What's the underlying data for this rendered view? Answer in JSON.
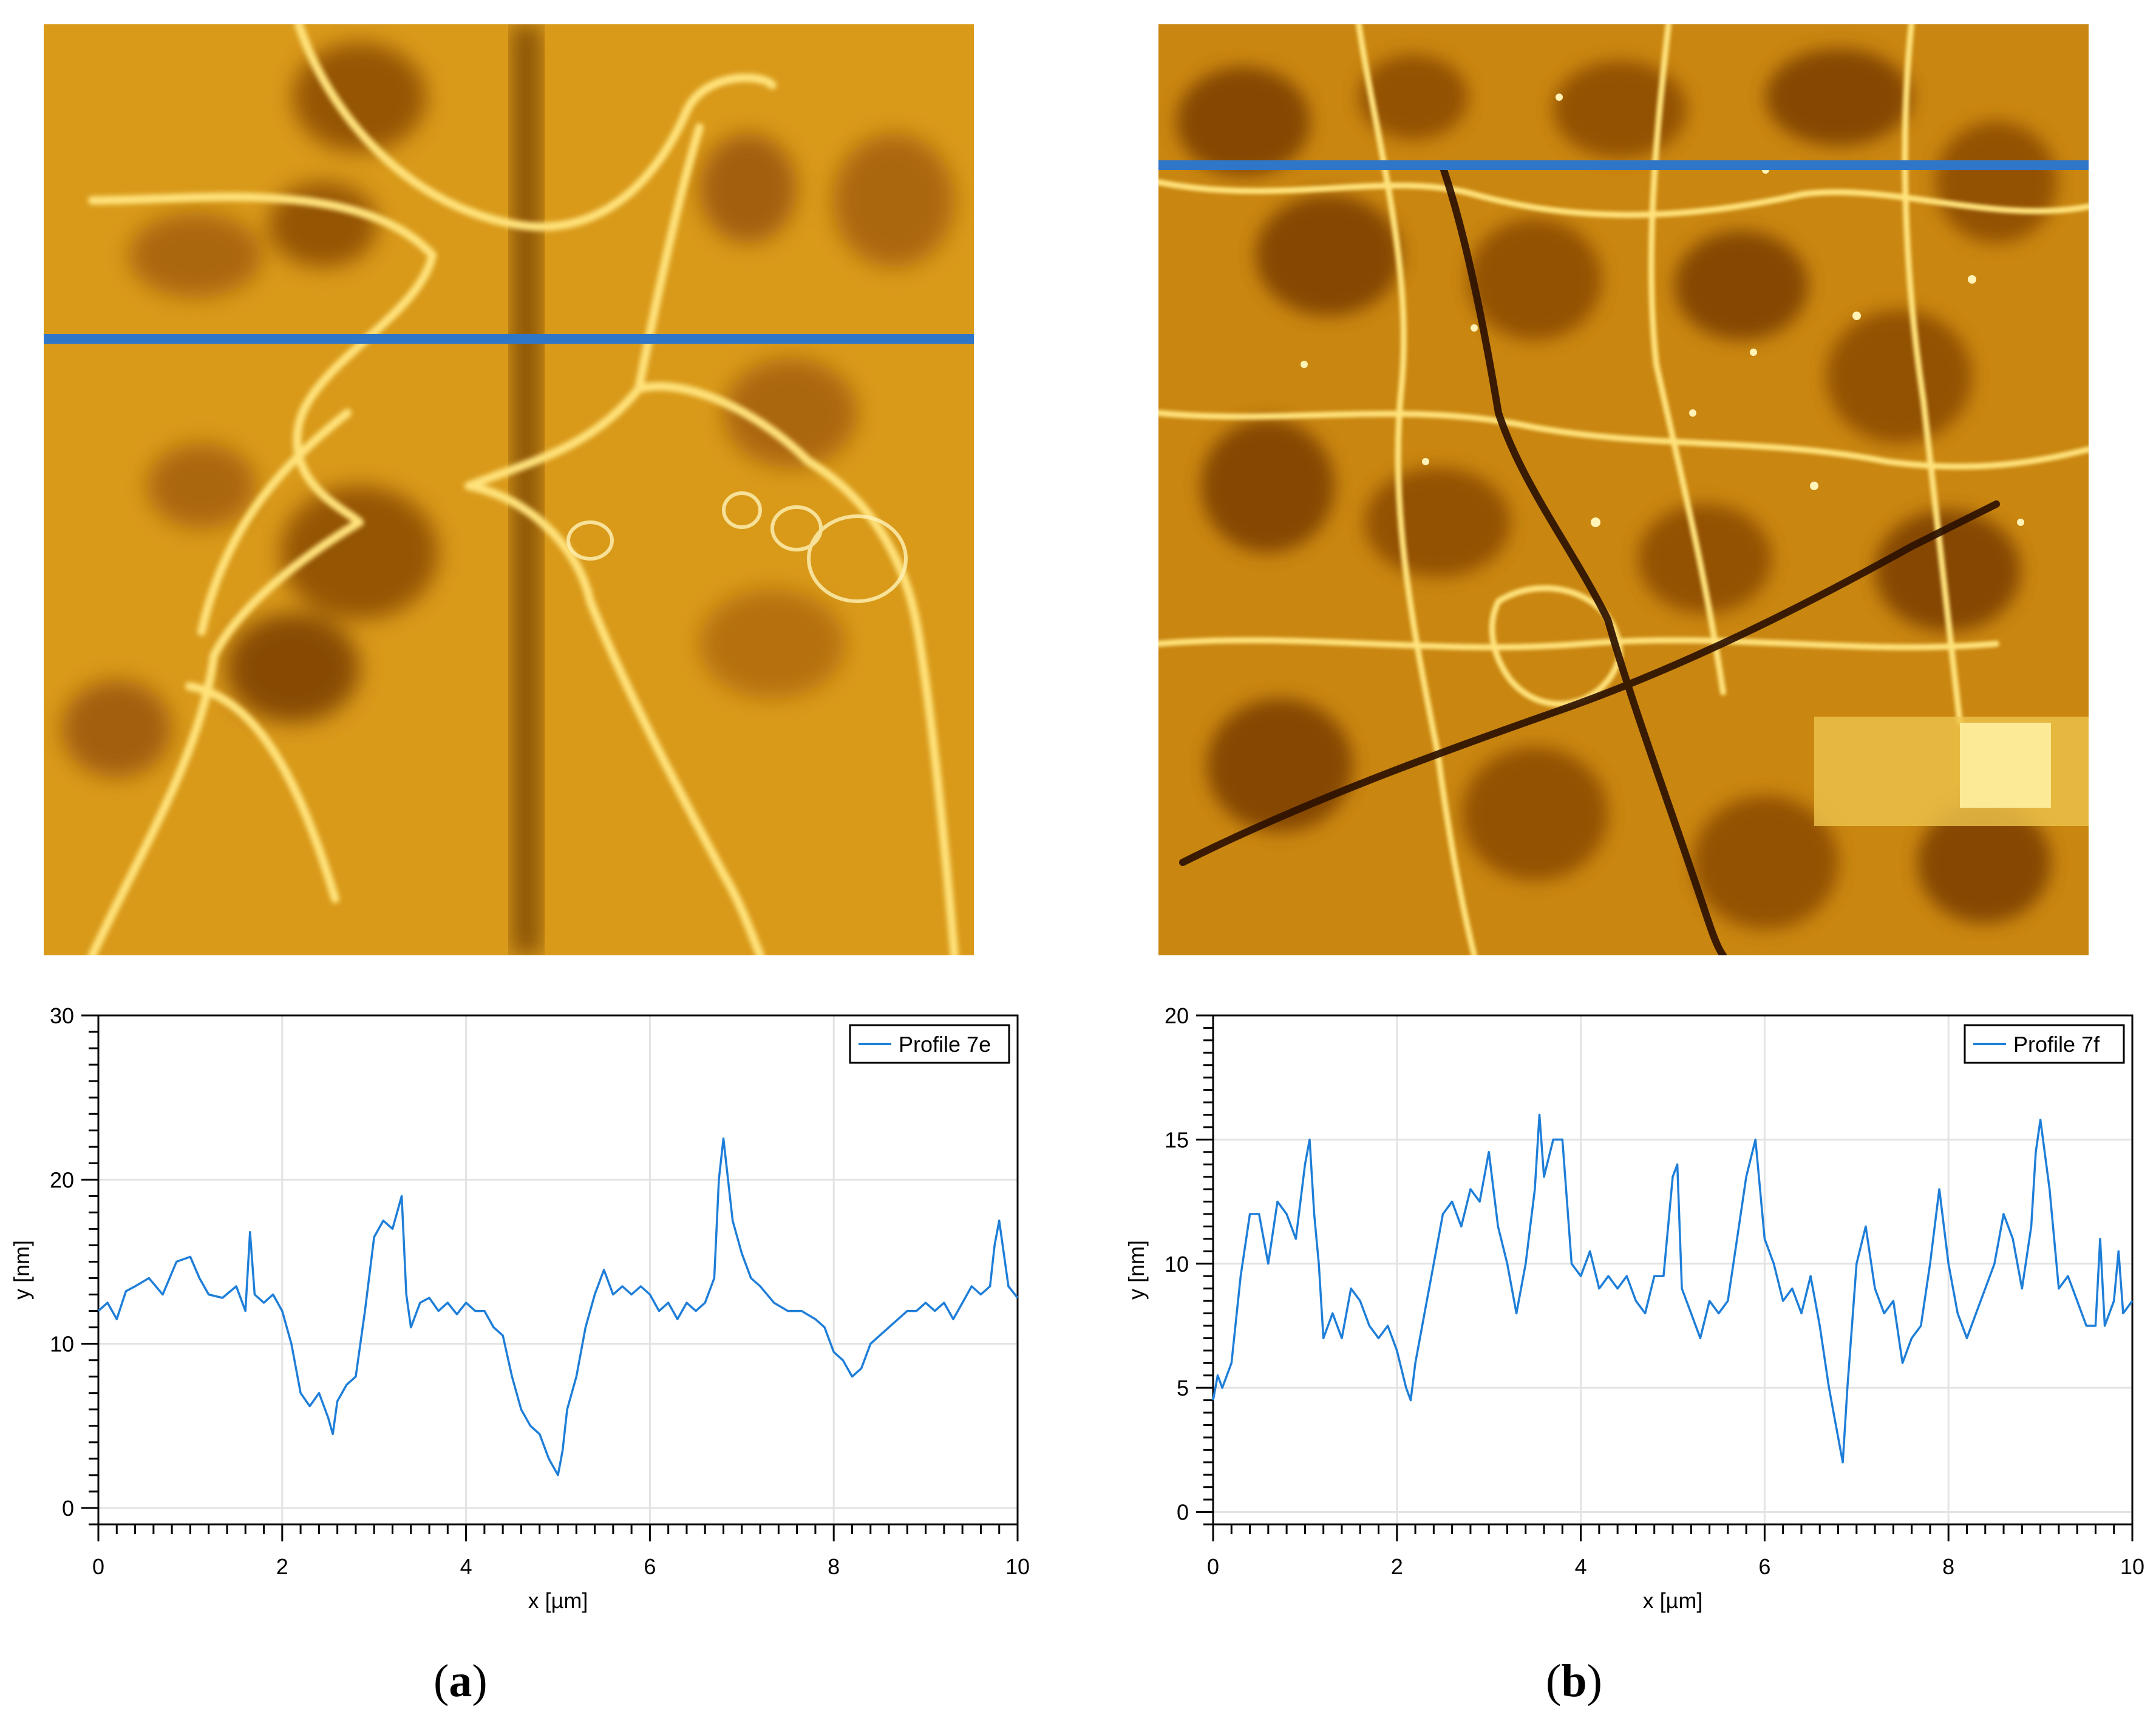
{
  "chart_data": [
    {
      "type": "line",
      "panel": "a",
      "title": "",
      "xlabel": "x [µm]",
      "ylabel": "y [nm]",
      "xlim": [
        0,
        10
      ],
      "ylim": [
        -1,
        30
      ],
      "xticks": [
        "0",
        "2",
        "4",
        "6",
        "8",
        "10"
      ],
      "yticks": [
        "0",
        "10",
        "20",
        "30"
      ],
      "grid": true,
      "legend": "top-right",
      "series": [
        {
          "name": "Profile 7e",
          "color": "#1e7ed8",
          "x": [
            0.0,
            0.1,
            0.2,
            0.3,
            0.4,
            0.55,
            0.7,
            0.85,
            1.0,
            1.1,
            1.2,
            1.35,
            1.5,
            1.6,
            1.65,
            1.7,
            1.8,
            1.9,
            2.0,
            2.1,
            2.2,
            2.3,
            2.4,
            2.5,
            2.55,
            2.6,
            2.7,
            2.8,
            2.9,
            3.0,
            3.1,
            3.2,
            3.3,
            3.35,
            3.4,
            3.5,
            3.6,
            3.7,
            3.8,
            3.9,
            4.0,
            4.1,
            4.2,
            4.3,
            4.4,
            4.5,
            4.6,
            4.7,
            4.8,
            4.9,
            5.0,
            5.05,
            5.1,
            5.2,
            5.3,
            5.4,
            5.5,
            5.6,
            5.7,
            5.8,
            5.9,
            6.0,
            6.1,
            6.2,
            6.3,
            6.4,
            6.5,
            6.6,
            6.7,
            6.75,
            6.8,
            6.9,
            7.0,
            7.1,
            7.2,
            7.35,
            7.5,
            7.65,
            7.8,
            7.9,
            8.0,
            8.1,
            8.2,
            8.3,
            8.4,
            8.5,
            8.6,
            8.7,
            8.8,
            8.9,
            9.0,
            9.1,
            9.2,
            9.3,
            9.4,
            9.5,
            9.6,
            9.7,
            9.75,
            9.8,
            9.9,
            10.0
          ],
          "y": [
            12.0,
            12.5,
            11.5,
            13.2,
            13.5,
            14.0,
            13.0,
            15.0,
            15.3,
            14.0,
            13.0,
            12.8,
            13.5,
            12.0,
            16.8,
            13.0,
            12.5,
            13.0,
            12.0,
            10.0,
            7.0,
            6.2,
            7.0,
            5.5,
            4.5,
            6.5,
            7.5,
            8.0,
            12.0,
            16.5,
            17.5,
            17.0,
            19.0,
            13.0,
            11.0,
            12.5,
            12.8,
            12.0,
            12.5,
            11.8,
            12.5,
            12.0,
            12.0,
            11.0,
            10.5,
            8.0,
            6.0,
            5.0,
            4.5,
            3.0,
            2.0,
            3.5,
            6.0,
            8.0,
            11.0,
            13.0,
            14.5,
            13.0,
            13.5,
            13.0,
            13.5,
            13.0,
            12.0,
            12.5,
            11.5,
            12.5,
            12.0,
            12.5,
            14.0,
            20.0,
            22.5,
            17.5,
            15.5,
            14.0,
            13.5,
            12.5,
            12.0,
            12.0,
            11.5,
            11.0,
            9.5,
            9.0,
            8.0,
            8.5,
            10.0,
            10.5,
            11.0,
            11.5,
            12.0,
            12.0,
            12.5,
            12.0,
            12.5,
            11.5,
            12.5,
            13.5,
            13.0,
            13.5,
            16.0,
            17.5,
            13.5,
            12.8
          ]
        }
      ]
    },
    {
      "type": "line",
      "panel": "b",
      "title": "",
      "xlabel": "x [µm]",
      "ylabel": "y [nm]",
      "xlim": [
        0,
        10
      ],
      "ylim": [
        -0.5,
        20
      ],
      "xticks": [
        "0",
        "2",
        "4",
        "6",
        "8",
        "10"
      ],
      "yticks": [
        "0",
        "5",
        "10",
        "15",
        "20"
      ],
      "grid": true,
      "legend": "top-right",
      "series": [
        {
          "name": "Profile 7f",
          "color": "#1e7ed8",
          "x": [
            0.0,
            0.05,
            0.1,
            0.2,
            0.3,
            0.4,
            0.5,
            0.6,
            0.7,
            0.8,
            0.9,
            1.0,
            1.05,
            1.1,
            1.15,
            1.2,
            1.3,
            1.4,
            1.5,
            1.6,
            1.7,
            1.8,
            1.9,
            2.0,
            2.1,
            2.15,
            2.2,
            2.3,
            2.4,
            2.5,
            2.6,
            2.7,
            2.8,
            2.9,
            3.0,
            3.1,
            3.2,
            3.3,
            3.4,
            3.5,
            3.55,
            3.6,
            3.7,
            3.8,
            3.9,
            4.0,
            4.1,
            4.2,
            4.3,
            4.4,
            4.5,
            4.6,
            4.7,
            4.8,
            4.9,
            5.0,
            5.05,
            5.1,
            5.2,
            5.3,
            5.4,
            5.5,
            5.6,
            5.7,
            5.8,
            5.9,
            6.0,
            6.1,
            6.2,
            6.3,
            6.4,
            6.5,
            6.6,
            6.7,
            6.8,
            6.85,
            6.9,
            7.0,
            7.1,
            7.2,
            7.3,
            7.4,
            7.5,
            7.6,
            7.7,
            7.8,
            7.9,
            8.0,
            8.1,
            8.2,
            8.3,
            8.4,
            8.5,
            8.6,
            8.7,
            8.8,
            8.9,
            8.95,
            9.0,
            9.1,
            9.2,
            9.3,
            9.4,
            9.5,
            9.6,
            9.65,
            9.7,
            9.8,
            9.85,
            9.9,
            10.0
          ],
          "y": [
            4.5,
            5.5,
            5.0,
            6.0,
            9.5,
            12.0,
            12.0,
            10.0,
            12.5,
            12.0,
            11.0,
            14.0,
            15.0,
            12.0,
            10.0,
            7.0,
            8.0,
            7.0,
            9.0,
            8.5,
            7.5,
            7.0,
            7.5,
            6.5,
            5.0,
            4.5,
            6.0,
            8.0,
            10.0,
            12.0,
            12.5,
            11.5,
            13.0,
            12.5,
            14.5,
            11.5,
            10.0,
            8.0,
            10.0,
            13.0,
            16.0,
            13.5,
            15.0,
            15.0,
            10.0,
            9.5,
            10.5,
            9.0,
            9.5,
            9.0,
            9.5,
            8.5,
            8.0,
            9.5,
            9.5,
            13.5,
            14.0,
            9.0,
            8.0,
            7.0,
            8.5,
            8.0,
            8.5,
            11.0,
            13.5,
            15.0,
            11.0,
            10.0,
            8.5,
            9.0,
            8.0,
            9.5,
            7.5,
            5.0,
            3.0,
            2.0,
            5.0,
            10.0,
            11.5,
            9.0,
            8.0,
            8.5,
            6.0,
            7.0,
            7.5,
            10.0,
            13.0,
            10.0,
            8.0,
            7.0,
            8.0,
            9.0,
            10.0,
            12.0,
            11.0,
            9.0,
            11.5,
            14.5,
            15.8,
            13.0,
            9.0,
            9.5,
            8.5,
            7.5,
            7.5,
            11.0,
            7.5,
            8.5,
            10.5,
            8.0,
            8.5
          ]
        }
      ]
    }
  ],
  "captions": {
    "a": "a",
    "b": "b"
  },
  "afm_colors": {
    "dark": "#6e3a02",
    "mid": "#c8870f",
    "light": "#f0b21c",
    "bright": "#ffe27a",
    "line": "#2f76c9"
  }
}
